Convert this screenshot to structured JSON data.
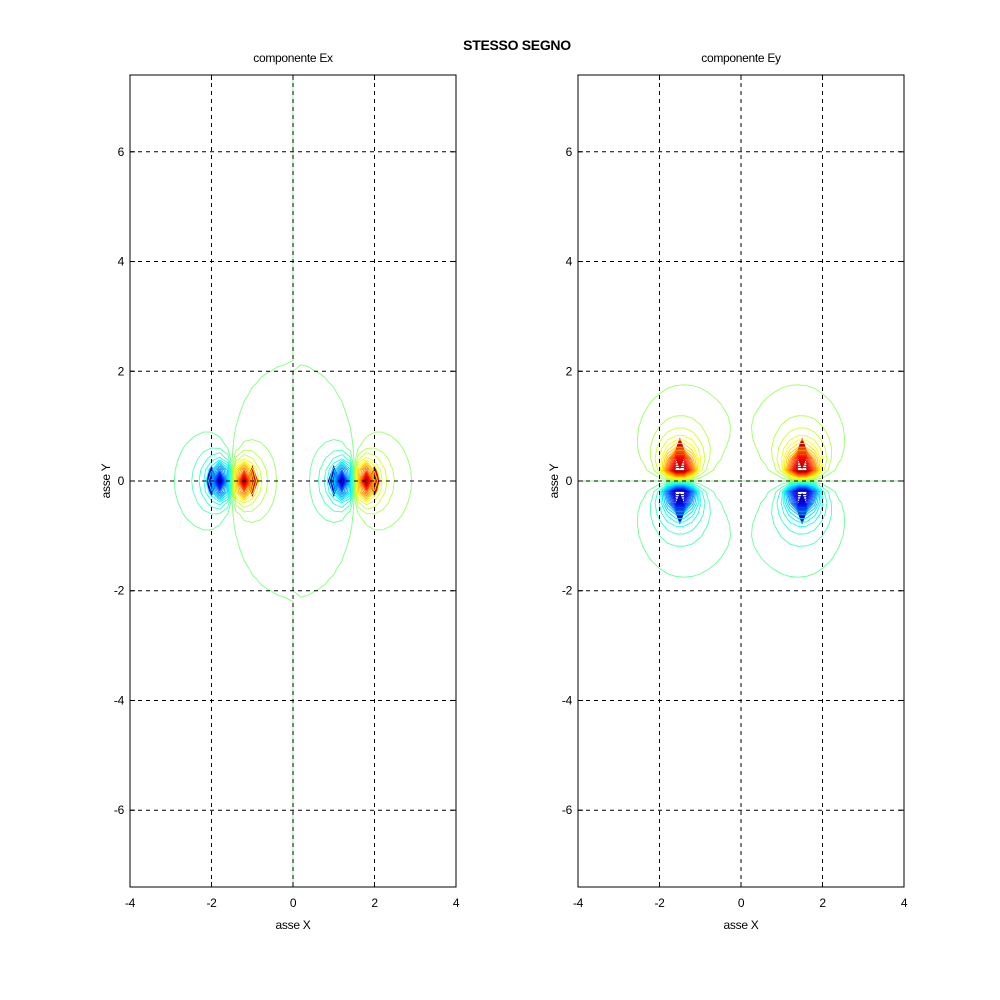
{
  "figure": {
    "title": "STESSO SEGNO"
  },
  "chart_data": [
    {
      "type": "contour",
      "title": "componente Ex",
      "xlabel": "asse X",
      "ylabel": "asse Y",
      "xlim": [
        -4,
        4
      ],
      "ylim": [
        -7.4,
        7.4
      ],
      "xticks": [
        -4,
        -2,
        0,
        2,
        4
      ],
      "yticks": [
        -6,
        -4,
        -2,
        0,
        2,
        4,
        6
      ],
      "grid": true,
      "colormap": "jet",
      "field": "Ex",
      "charges": [
        {
          "x": -1.5,
          "y": 0,
          "q": 1
        },
        {
          "x": 1.5,
          "y": 0,
          "q": 1
        }
      ],
      "extrema": [
        {
          "x": -2,
          "y": 0,
          "kind": "min",
          "color": "#0000c8"
        },
        {
          "x": -1,
          "y": 0,
          "kind": "max",
          "color": "#d40000"
        },
        {
          "x": 1,
          "y": 0,
          "kind": "min",
          "color": "#0000c8"
        },
        {
          "x": 2,
          "y": 0,
          "kind": "max",
          "color": "#d40000"
        }
      ]
    },
    {
      "type": "contour",
      "title": "componente Ey",
      "xlabel": "asse X",
      "ylabel": "asse Y",
      "xlim": [
        -4,
        4
      ],
      "ylim": [
        -7.4,
        7.4
      ],
      "xticks": [
        -4,
        -2,
        0,
        2,
        4
      ],
      "yticks": [
        -6,
        -4,
        -2,
        0,
        2,
        4,
        6
      ],
      "grid": true,
      "colormap": "jet",
      "field": "Ey",
      "charges": [
        {
          "x": -1.5,
          "y": 0,
          "q": 1
        },
        {
          "x": 1.5,
          "y": 0,
          "q": 1
        }
      ],
      "extrema": [
        {
          "x": -1.5,
          "y": 0.5,
          "kind": "max",
          "color": "#d40000"
        },
        {
          "x": 1.5,
          "y": 0.5,
          "kind": "max",
          "color": "#d40000"
        },
        {
          "x": -1.5,
          "y": -0.5,
          "kind": "min",
          "color": "#0000c8"
        },
        {
          "x": 1.5,
          "y": -0.5,
          "kind": "min",
          "color": "#0000c8"
        }
      ]
    }
  ]
}
